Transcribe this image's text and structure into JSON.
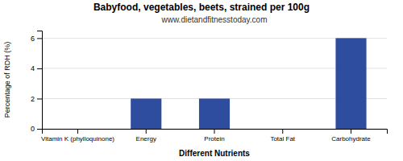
{
  "chart_data": {
    "type": "bar",
    "title": "Babyfood, vegetables, beets, strained per 100g",
    "subtitle": "www.dietandfitnesstoday.com",
    "xlabel": "Different Nutrients",
    "ylabel": "Percentage of RDH (%)",
    "categories": [
      "Vitamin K (phylloquinone)",
      "Energy",
      "Protein",
      "Total Fat",
      "Carbohydrate"
    ],
    "values": [
      0,
      2,
      2,
      0,
      6
    ],
    "color": "#2e4d9e",
    "ylim": [
      0,
      6.5
    ],
    "yticks": [
      0,
      2,
      4,
      6
    ],
    "grid": true
  }
}
